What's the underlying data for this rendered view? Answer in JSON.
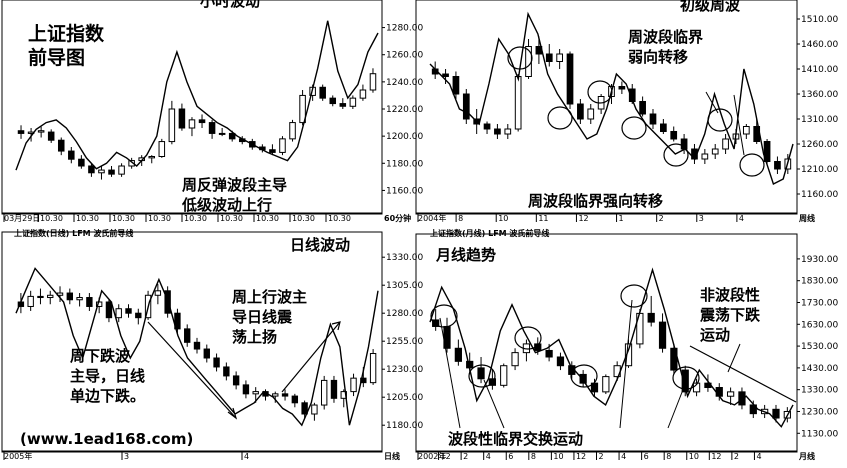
{
  "watermark": "(www.1ead168.com)",
  "chart_data": [
    {
      "type": "candlestick",
      "panel": "top-left",
      "header": "小时波动",
      "title": "上证指数\n前导图",
      "annotation": "周反弹波段主导\n低级波动上行",
      "x_labels": [
        "03月29日",
        "10.30",
        "10.30",
        "10.30",
        "10.30",
        "10.30",
        "10.30",
        "10.30",
        "10.30",
        "10.30"
      ],
      "y_ticks": [
        "1280.00",
        "1260.00",
        "1240.00",
        "1220.00",
        "1200.00",
        "1180.00",
        "1160.00"
      ],
      "y_range": [
        1150,
        1290
      ],
      "corner_label": "60分钟",
      "candles": [
        {
          "o": 1204,
          "h": 1208,
          "l": 1198,
          "c": 1202
        },
        {
          "o": 1202,
          "h": 1206,
          "l": 1196,
          "c": 1203
        },
        {
          "o": 1203,
          "h": 1207,
          "l": 1199,
          "c": 1204
        },
        {
          "o": 1203,
          "h": 1205,
          "l": 1195,
          "c": 1197
        },
        {
          "o": 1197,
          "h": 1199,
          "l": 1186,
          "c": 1189
        },
        {
          "o": 1189,
          "h": 1192,
          "l": 1180,
          "c": 1183
        },
        {
          "o": 1183,
          "h": 1186,
          "l": 1176,
          "c": 1178
        },
        {
          "o": 1178,
          "h": 1180,
          "l": 1170,
          "c": 1173
        },
        {
          "o": 1173,
          "h": 1178,
          "l": 1168,
          "c": 1175
        },
        {
          "o": 1175,
          "h": 1178,
          "l": 1170,
          "c": 1172
        },
        {
          "o": 1172,
          "h": 1180,
          "l": 1170,
          "c": 1178
        },
        {
          "o": 1178,
          "h": 1184,
          "l": 1176,
          "c": 1182
        },
        {
          "o": 1182,
          "h": 1186,
          "l": 1178,
          "c": 1184
        },
        {
          "o": 1184,
          "h": 1186,
          "l": 1180,
          "c": 1185
        },
        {
          "o": 1185,
          "h": 1198,
          "l": 1184,
          "c": 1196
        },
        {
          "o": 1196,
          "h": 1226,
          "l": 1194,
          "c": 1220
        },
        {
          "o": 1220,
          "h": 1224,
          "l": 1204,
          "c": 1206
        },
        {
          "o": 1206,
          "h": 1214,
          "l": 1200,
          "c": 1212
        },
        {
          "o": 1212,
          "h": 1216,
          "l": 1206,
          "c": 1210
        },
        {
          "o": 1210,
          "h": 1212,
          "l": 1198,
          "c": 1202
        },
        {
          "o": 1202,
          "h": 1206,
          "l": 1200,
          "c": 1202
        },
        {
          "o": 1202,
          "h": 1204,
          "l": 1196,
          "c": 1198
        },
        {
          "o": 1198,
          "h": 1200,
          "l": 1194,
          "c": 1196
        },
        {
          "o": 1196,
          "h": 1198,
          "l": 1190,
          "c": 1192
        },
        {
          "o": 1192,
          "h": 1194,
          "l": 1188,
          "c": 1190
        },
        {
          "o": 1190,
          "h": 1194,
          "l": 1186,
          "c": 1188
        },
        {
          "o": 1188,
          "h": 1200,
          "l": 1186,
          "c": 1198
        },
        {
          "o": 1198,
          "h": 1212,
          "l": 1196,
          "c": 1210
        },
        {
          "o": 1210,
          "h": 1234,
          "l": 1208,
          "c": 1230
        },
        {
          "o": 1230,
          "h": 1238,
          "l": 1226,
          "c": 1236
        },
        {
          "o": 1236,
          "h": 1238,
          "l": 1226,
          "c": 1228
        },
        {
          "o": 1228,
          "h": 1230,
          "l": 1222,
          "c": 1224
        },
        {
          "o": 1224,
          "h": 1228,
          "l": 1220,
          "c": 1222
        },
        {
          "o": 1222,
          "h": 1230,
          "l": 1220,
          "c": 1228
        },
        {
          "o": 1228,
          "h": 1238,
          "l": 1226,
          "c": 1234
        },
        {
          "o": 1234,
          "h": 1250,
          "l": 1232,
          "c": 1246
        }
      ],
      "line": [
        1175,
        1195,
        1205,
        1210,
        1212,
        1206,
        1196,
        1184,
        1176,
        1180,
        1188,
        1184,
        1178,
        1186,
        1200,
        1240,
        1262,
        1240,
        1222,
        1216,
        1210,
        1206,
        1200,
        1196,
        1192,
        1188,
        1185,
        1182,
        1192,
        1220,
        1250,
        1285,
        1248,
        1228,
        1238,
        1262,
        1276
      ]
    },
    {
      "type": "candlestick",
      "panel": "top-right",
      "header": "初级周波",
      "annotations": [
        "周波段临界\n弱向转移",
        "周波段临界强向转移"
      ],
      "x_labels": [
        "2004年",
        "8",
        "10",
        "11",
        "12",
        "1",
        "2",
        "3",
        "4"
      ],
      "y_ticks": [
        "1510.00",
        "1460.00",
        "1410.00",
        "1360.00",
        "1310.00",
        "1260.00",
        "1210.00",
        "1160.00"
      ],
      "y_range": [
        1140,
        1520
      ],
      "corner_label": "周线",
      "candles": [
        {
          "o": 1410,
          "h": 1425,
          "l": 1390,
          "c": 1400
        },
        {
          "o": 1400,
          "h": 1410,
          "l": 1380,
          "c": 1395
        },
        {
          "o": 1395,
          "h": 1405,
          "l": 1350,
          "c": 1360
        },
        {
          "o": 1360,
          "h": 1370,
          "l": 1300,
          "c": 1310
        },
        {
          "o": 1310,
          "h": 1330,
          "l": 1280,
          "c": 1300
        },
        {
          "o": 1300,
          "h": 1305,
          "l": 1280,
          "c": 1290
        },
        {
          "o": 1290,
          "h": 1300,
          "l": 1270,
          "c": 1280
        },
        {
          "o": 1280,
          "h": 1300,
          "l": 1270,
          "c": 1290
        },
        {
          "o": 1290,
          "h": 1400,
          "l": 1285,
          "c": 1395
        },
        {
          "o": 1395,
          "h": 1470,
          "l": 1390,
          "c": 1455
        },
        {
          "o": 1455,
          "h": 1475,
          "l": 1420,
          "c": 1440
        },
        {
          "o": 1440,
          "h": 1460,
          "l": 1415,
          "c": 1425
        },
        {
          "o": 1425,
          "h": 1450,
          "l": 1410,
          "c": 1440
        },
        {
          "o": 1440,
          "h": 1445,
          "l": 1330,
          "c": 1340
        },
        {
          "o": 1340,
          "h": 1350,
          "l": 1300,
          "c": 1310
        },
        {
          "o": 1310,
          "h": 1340,
          "l": 1300,
          "c": 1330
        },
        {
          "o": 1330,
          "h": 1360,
          "l": 1320,
          "c": 1355
        },
        {
          "o": 1355,
          "h": 1380,
          "l": 1340,
          "c": 1375
        },
        {
          "o": 1375,
          "h": 1385,
          "l": 1360,
          "c": 1370
        },
        {
          "o": 1370,
          "h": 1380,
          "l": 1340,
          "c": 1345
        },
        {
          "o": 1345,
          "h": 1355,
          "l": 1315,
          "c": 1320
        },
        {
          "o": 1320,
          "h": 1330,
          "l": 1290,
          "c": 1300
        },
        {
          "o": 1300,
          "h": 1310,
          "l": 1280,
          "c": 1285
        },
        {
          "o": 1285,
          "h": 1295,
          "l": 1265,
          "c": 1270
        },
        {
          "o": 1270,
          "h": 1280,
          "l": 1240,
          "c": 1250
        },
        {
          "o": 1250,
          "h": 1260,
          "l": 1220,
          "c": 1230
        },
        {
          "o": 1230,
          "h": 1250,
          "l": 1220,
          "c": 1240
        },
        {
          "o": 1240,
          "h": 1260,
          "l": 1230,
          "c": 1250
        },
        {
          "o": 1250,
          "h": 1280,
          "l": 1240,
          "c": 1270
        },
        {
          "o": 1270,
          "h": 1290,
          "l": 1260,
          "c": 1280
        },
        {
          "o": 1280,
          "h": 1300,
          "l": 1270,
          "c": 1295
        },
        {
          "o": 1295,
          "h": 1310,
          "l": 1260,
          "c": 1265
        },
        {
          "o": 1265,
          "h": 1270,
          "l": 1220,
          "c": 1225
        },
        {
          "o": 1225,
          "h": 1235,
          "l": 1200,
          "c": 1210
        },
        {
          "o": 1210,
          "h": 1240,
          "l": 1200,
          "c": 1230
        }
      ],
      "line": [
        1420,
        1400,
        1380,
        1330,
        1320,
        1300,
        1380,
        1470,
        1440,
        1390,
        1520,
        1480,
        1400,
        1360,
        1330,
        1300,
        1270,
        1280,
        1330,
        1400,
        1380,
        1330,
        1300,
        1280,
        1260,
        1240,
        1250,
        1230,
        1280,
        1360,
        1300,
        1250,
        1410,
        1340,
        1240,
        1180,
        1190,
        1260
      ]
    },
    {
      "type": "candlestick",
      "panel": "bottom-left",
      "subheader": "上证指数(日线) LFM 波氏前导线",
      "header": "日线波动",
      "annotations": [
        "周上行波主\n导日线震\n荡上扬",
        "周下跌波\n主导，日线\n单边下跌。"
      ],
      "x_labels": [
        "2005年",
        "3",
        "4"
      ],
      "y_ticks": [
        "1330.00",
        "1305.00",
        "1280.00",
        "1255.00",
        "1230.00",
        "1205.00",
        "1180.00"
      ],
      "y_range": [
        1165,
        1340
      ],
      "corner_label": "日线",
      "candles": [
        {
          "o": 1290,
          "h": 1298,
          "l": 1280,
          "c": 1286
        },
        {
          "o": 1286,
          "h": 1300,
          "l": 1282,
          "c": 1295
        },
        {
          "o": 1295,
          "h": 1302,
          "l": 1288,
          "c": 1294
        },
        {
          "o": 1294,
          "h": 1300,
          "l": 1288,
          "c": 1296
        },
        {
          "o": 1296,
          "h": 1304,
          "l": 1290,
          "c": 1298
        },
        {
          "o": 1298,
          "h": 1302,
          "l": 1288,
          "c": 1292
        },
        {
          "o": 1292,
          "h": 1298,
          "l": 1286,
          "c": 1294
        },
        {
          "o": 1294,
          "h": 1298,
          "l": 1282,
          "c": 1286
        },
        {
          "o": 1286,
          "h": 1294,
          "l": 1280,
          "c": 1290
        },
        {
          "o": 1290,
          "h": 1292,
          "l": 1272,
          "c": 1276
        },
        {
          "o": 1276,
          "h": 1288,
          "l": 1272,
          "c": 1284
        },
        {
          "o": 1284,
          "h": 1288,
          "l": 1276,
          "c": 1280
        },
        {
          "o": 1280,
          "h": 1284,
          "l": 1270,
          "c": 1276
        },
        {
          "o": 1276,
          "h": 1300,
          "l": 1274,
          "c": 1296
        },
        {
          "o": 1296,
          "h": 1306,
          "l": 1288,
          "c": 1300
        },
        {
          "o": 1300,
          "h": 1304,
          "l": 1276,
          "c": 1280
        },
        {
          "o": 1280,
          "h": 1284,
          "l": 1262,
          "c": 1266
        },
        {
          "o": 1266,
          "h": 1270,
          "l": 1250,
          "c": 1254
        },
        {
          "o": 1254,
          "h": 1258,
          "l": 1244,
          "c": 1248
        },
        {
          "o": 1248,
          "h": 1252,
          "l": 1236,
          "c": 1240
        },
        {
          "o": 1240,
          "h": 1244,
          "l": 1228,
          "c": 1232
        },
        {
          "o": 1232,
          "h": 1236,
          "l": 1220,
          "c": 1224
        },
        {
          "o": 1224,
          "h": 1228,
          "l": 1212,
          "c": 1216
        },
        {
          "o": 1216,
          "h": 1220,
          "l": 1204,
          "c": 1208
        },
        {
          "o": 1208,
          "h": 1214,
          "l": 1200,
          "c": 1210
        },
        {
          "o": 1210,
          "h": 1212,
          "l": 1202,
          "c": 1206
        },
        {
          "o": 1206,
          "h": 1210,
          "l": 1200,
          "c": 1208
        },
        {
          "o": 1208,
          "h": 1212,
          "l": 1202,
          "c": 1206
        },
        {
          "o": 1206,
          "h": 1208,
          "l": 1196,
          "c": 1200
        },
        {
          "o": 1200,
          "h": 1202,
          "l": 1186,
          "c": 1190
        },
        {
          "o": 1190,
          "h": 1200,
          "l": 1184,
          "c": 1198
        },
        {
          "o": 1198,
          "h": 1224,
          "l": 1194,
          "c": 1220
        },
        {
          "o": 1220,
          "h": 1224,
          "l": 1200,
          "c": 1204
        },
        {
          "o": 1204,
          "h": 1212,
          "l": 1196,
          "c": 1210
        },
        {
          "o": 1210,
          "h": 1226,
          "l": 1206,
          "c": 1222
        },
        {
          "o": 1222,
          "h": 1232,
          "l": 1214,
          "c": 1218
        },
        {
          "o": 1218,
          "h": 1248,
          "l": 1216,
          "c": 1244
        }
      ],
      "line": [
        1280,
        1300,
        1320,
        1310,
        1300,
        1290,
        1260,
        1240,
        1270,
        1300,
        1290,
        1260,
        1240,
        1255,
        1290,
        1310,
        1290,
        1260,
        1240,
        1230,
        1220,
        1210,
        1200,
        1190,
        1195,
        1200,
        1210,
        1205,
        1195,
        1190,
        1180,
        1200,
        1240,
        1270,
        1250,
        1180,
        1210,
        1250,
        1300
      ]
    },
    {
      "type": "candlestick",
      "panel": "bottom-right",
      "subheader": "上证指数(月线) LFM 波氏前导线",
      "header": "月线趋势",
      "annotations": [
        "非波段性\n震荡下跌\n运动",
        "波段性临界交换运动"
      ],
      "x_labels": [
        "2002年",
        "12",
        "2",
        "4",
        "6",
        "8",
        "10",
        "12",
        "2",
        "4",
        "6",
        "8",
        "10",
        "12",
        "2",
        "4"
      ],
      "y_ticks": [
        "1930.00",
        "1830.00",
        "1730.00",
        "1630.00",
        "1530.00",
        "1430.00",
        "1330.00",
        "1230.00",
        "1130.00"
      ],
      "y_range": [
        1090,
        1980
      ],
      "corner_label": "月线",
      "candles": [
        {
          "o": 1650,
          "h": 1700,
          "l": 1600,
          "c": 1620
        },
        {
          "o": 1620,
          "h": 1660,
          "l": 1500,
          "c": 1520
        },
        {
          "o": 1520,
          "h": 1560,
          "l": 1440,
          "c": 1460
        },
        {
          "o": 1460,
          "h": 1500,
          "l": 1400,
          "c": 1430
        },
        {
          "o": 1430,
          "h": 1480,
          "l": 1360,
          "c": 1380
        },
        {
          "o": 1380,
          "h": 1420,
          "l": 1330,
          "c": 1350
        },
        {
          "o": 1350,
          "h": 1450,
          "l": 1340,
          "c": 1440
        },
        {
          "o": 1440,
          "h": 1520,
          "l": 1420,
          "c": 1500
        },
        {
          "o": 1500,
          "h": 1560,
          "l": 1460,
          "c": 1540
        },
        {
          "o": 1540,
          "h": 1570,
          "l": 1490,
          "c": 1510
        },
        {
          "o": 1510,
          "h": 1540,
          "l": 1460,
          "c": 1480
        },
        {
          "o": 1480,
          "h": 1500,
          "l": 1420,
          "c": 1440
        },
        {
          "o": 1440,
          "h": 1460,
          "l": 1380,
          "c": 1400
        },
        {
          "o": 1400,
          "h": 1420,
          "l": 1340,
          "c": 1360
        },
        {
          "o": 1360,
          "h": 1380,
          "l": 1300,
          "c": 1320
        },
        {
          "o": 1320,
          "h": 1400,
          "l": 1310,
          "c": 1390
        },
        {
          "o": 1390,
          "h": 1460,
          "l": 1370,
          "c": 1440
        },
        {
          "o": 1440,
          "h": 1560,
          "l": 1430,
          "c": 1540
        },
        {
          "o": 1540,
          "h": 1700,
          "l": 1520,
          "c": 1680
        },
        {
          "o": 1680,
          "h": 1760,
          "l": 1620,
          "c": 1640
        },
        {
          "o": 1640,
          "h": 1680,
          "l": 1500,
          "c": 1520
        },
        {
          "o": 1520,
          "h": 1540,
          "l": 1400,
          "c": 1420
        },
        {
          "o": 1420,
          "h": 1440,
          "l": 1300,
          "c": 1320
        },
        {
          "o": 1320,
          "h": 1380,
          "l": 1300,
          "c": 1360
        },
        {
          "o": 1360,
          "h": 1400,
          "l": 1320,
          "c": 1340
        },
        {
          "o": 1340,
          "h": 1360,
          "l": 1280,
          "c": 1300
        },
        {
          "o": 1300,
          "h": 1340,
          "l": 1260,
          "c": 1320
        },
        {
          "o": 1320,
          "h": 1340,
          "l": 1240,
          "c": 1260
        },
        {
          "o": 1260,
          "h": 1280,
          "l": 1200,
          "c": 1220
        },
        {
          "o": 1220,
          "h": 1260,
          "l": 1200,
          "c": 1240
        },
        {
          "o": 1240,
          "h": 1260,
          "l": 1180,
          "c": 1200
        },
        {
          "o": 1200,
          "h": 1250,
          "l": 1180,
          "c": 1230
        }
      ],
      "line": [
        1640,
        1800,
        1700,
        1520,
        1280,
        1380,
        1600,
        1720,
        1600,
        1500,
        1520,
        1560,
        1440,
        1380,
        1300,
        1260,
        1380,
        1520,
        1700,
        1880,
        1700,
        1500,
        1300,
        1420,
        1350,
        1280,
        1260,
        1300,
        1240,
        1220,
        1160,
        1260
      ]
    }
  ]
}
